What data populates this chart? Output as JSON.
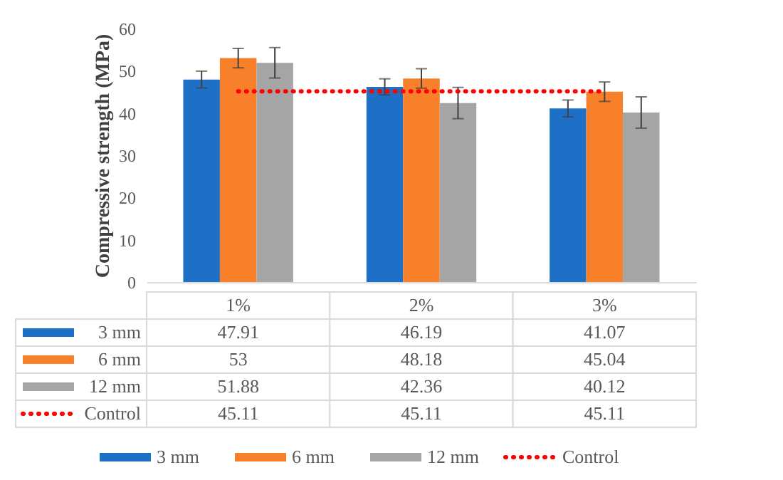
{
  "chart_data": {
    "type": "bar",
    "ylabel": "Compressive strength (MPa)",
    "categories": [
      "1%",
      "2%",
      "3%"
    ],
    "ylim": [
      0,
      60
    ],
    "yticks": [
      0,
      10,
      20,
      30,
      40,
      50,
      60
    ],
    "data_labels": true,
    "legend": "bottom",
    "series": [
      {
        "name": "3 mm",
        "color": "#1e70c6",
        "values": [
          47.91,
          46.19,
          41.07
        ],
        "errors": [
          2.0,
          1.9,
          2.0
        ]
      },
      {
        "name": "6 mm",
        "color": "#f8802b",
        "values": [
          53,
          48.18,
          45.04
        ],
        "errors": [
          2.3,
          2.3,
          2.3
        ]
      },
      {
        "name": "12 mm",
        "color": "#a5a5a5",
        "values": [
          51.88,
          42.36,
          40.12
        ],
        "errors": [
          3.6,
          3.7,
          3.7
        ]
      },
      {
        "name": "Control",
        "color": "#ff0000",
        "type": "line",
        "line_style": "dotted",
        "values": [
          45.11,
          45.11,
          45.11
        ]
      }
    ]
  }
}
